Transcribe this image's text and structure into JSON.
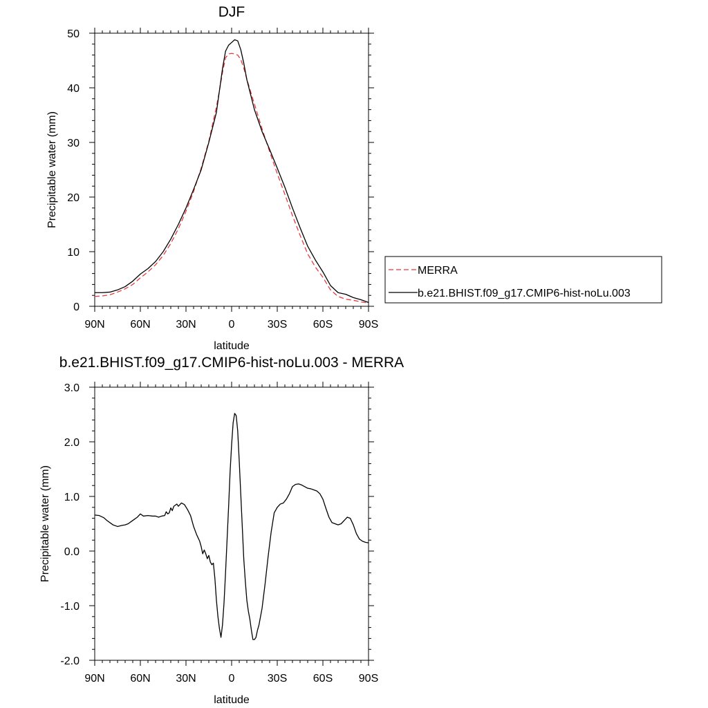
{
  "chart_data": [
    {
      "type": "line",
      "title": "DJF",
      "xlabel": "latitude",
      "ylabel": "Precipitable water (mm)",
      "xlim": [
        -90,
        90
      ],
      "ylim": [
        0,
        50
      ],
      "x_ticks": [
        -90,
        -60,
        -30,
        0,
        30,
        60,
        90
      ],
      "x_tick_labels": [
        "90N",
        "60N",
        "30N",
        "0",
        "30S",
        "60S",
        "90S"
      ],
      "y_ticks": [
        0,
        10,
        20,
        30,
        40,
        50
      ],
      "y_tick_labels": [
        "0",
        "10",
        "20",
        "30",
        "40",
        "50"
      ],
      "legend": "right",
      "series": [
        {
          "name": "MERRA",
          "color": "#e8383d",
          "dash": "dashed",
          "x": [
            -90,
            -85,
            -80,
            -75,
            -70,
            -65,
            -60,
            -55,
            -50,
            -45,
            -40,
            -35,
            -30,
            -25,
            -20,
            -15,
            -10,
            -8,
            -6,
            -4,
            -2,
            0,
            2,
            4,
            6,
            8,
            10,
            15,
            20,
            25,
            30,
            35,
            40,
            45,
            50,
            55,
            60,
            65,
            70,
            75,
            80,
            85,
            90
          ],
          "y": [
            1.8,
            1.9,
            2.1,
            2.6,
            3.2,
            4.0,
            5.2,
            6.3,
            7.6,
            9.3,
            11.5,
            14.2,
            17.4,
            21.0,
            25.3,
            30.2,
            36.5,
            39.5,
            42.8,
            45.5,
            46.2,
            46.3,
            46.2,
            46.0,
            45.2,
            43.6,
            41.6,
            37.0,
            32.5,
            28.3,
            24.3,
            20.5,
            16.6,
            13.0,
            9.6,
            7.2,
            5.3,
            3.0,
            1.8,
            1.3,
            1.1,
            0.8,
            0.6
          ]
        },
        {
          "name": "b.e21.BHIST.f09_g17.CMIP6-hist-noLu.003",
          "color": "#000000",
          "dash": "solid",
          "x": [
            -90,
            -85,
            -80,
            -75,
            -70,
            -65,
            -60,
            -55,
            -50,
            -45,
            -40,
            -35,
            -30,
            -25,
            -20,
            -15,
            -10,
            -8,
            -6,
            -4,
            -2,
            0,
            2,
            4,
            6,
            8,
            10,
            15,
            20,
            25,
            30,
            35,
            40,
            45,
            50,
            55,
            60,
            65,
            70,
            75,
            80,
            85,
            90
          ],
          "y": [
            2.5,
            2.5,
            2.6,
            3.0,
            3.6,
            4.6,
            5.9,
            6.9,
            8.2,
            10.0,
            12.3,
            15.0,
            18.0,
            21.4,
            25.0,
            30.0,
            35.5,
            39.5,
            43.5,
            46.7,
            47.8,
            48.3,
            48.8,
            48.6,
            47.0,
            44.5,
            41.5,
            36.0,
            32.0,
            28.7,
            25.3,
            21.8,
            18.0,
            14.4,
            11.0,
            8.5,
            6.3,
            3.8,
            2.5,
            2.2,
            1.6,
            1.2,
            0.7
          ]
        }
      ]
    },
    {
      "type": "line",
      "title": "b.e21.BHIST.f09_g17.CMIP6-hist-noLu.003 - MERRA",
      "xlabel": "latitude",
      "ylabel": "Precipitable water (mm)",
      "xlim": [
        -90,
        90
      ],
      "ylim": [
        -2.0,
        3.0
      ],
      "x_ticks": [
        -90,
        -60,
        -30,
        0,
        30,
        60,
        90
      ],
      "x_tick_labels": [
        "90N",
        "60N",
        "30N",
        "0",
        "30S",
        "60S",
        "90S"
      ],
      "y_ticks": [
        -2.0,
        -1.0,
        0.0,
        1.0,
        2.0,
        3.0
      ],
      "y_tick_labels": [
        "-2.0",
        "-1.0",
        "0.0",
        "1.0",
        "2.0",
        "3.0"
      ],
      "series": [
        {
          "color": "#000000",
          "dash": "solid",
          "x": [
            -90,
            -87,
            -84,
            -82,
            -80,
            -78,
            -75,
            -72,
            -70,
            -68,
            -66,
            -64,
            -62,
            -60,
            -58,
            -55,
            -52,
            -50,
            -48,
            -46,
            -44,
            -43,
            -42,
            -41,
            -40,
            -39,
            -38,
            -36,
            -35,
            -33,
            -31,
            -29,
            -27,
            -25,
            -23,
            -21,
            -20,
            -19,
            -18,
            -17,
            -16,
            -15,
            -14,
            -13,
            -12,
            -11,
            -10,
            -9,
            -8,
            -7,
            -6,
            -5,
            -4,
            -3,
            -2,
            -1,
            0,
            1,
            2,
            3,
            4,
            5,
            6,
            7,
            8,
            9,
            10,
            11,
            12,
            13,
            14,
            15,
            16,
            17,
            18,
            19,
            20,
            22,
            24,
            26,
            28,
            30,
            32,
            34,
            36,
            38,
            40,
            42,
            44,
            46,
            48,
            50,
            52,
            54,
            56,
            58,
            60,
            62,
            64,
            66,
            68,
            70,
            72,
            74,
            76,
            78,
            80,
            82,
            84,
            86,
            88,
            90
          ],
          "y": [
            0.66,
            0.65,
            0.61,
            0.56,
            0.52,
            0.48,
            0.45,
            0.47,
            0.48,
            0.5,
            0.54,
            0.58,
            0.62,
            0.68,
            0.64,
            0.65,
            0.64,
            0.64,
            0.62,
            0.64,
            0.65,
            0.72,
            0.68,
            0.7,
            0.79,
            0.74,
            0.82,
            0.86,
            0.82,
            0.88,
            0.85,
            0.76,
            0.65,
            0.45,
            0.3,
            0.18,
            0.08,
            -0.05,
            0.02,
            -0.05,
            -0.14,
            -0.08,
            -0.2,
            -0.25,
            -0.22,
            -0.5,
            -0.9,
            -1.2,
            -1.42,
            -1.58,
            -1.35,
            -0.95,
            -0.4,
            0.2,
            0.8,
            1.45,
            1.95,
            2.35,
            2.52,
            2.48,
            2.2,
            1.65,
            1.05,
            0.45,
            -0.15,
            -0.55,
            -0.9,
            -1.1,
            -1.25,
            -1.45,
            -1.62,
            -1.62,
            -1.58,
            -1.45,
            -1.35,
            -1.2,
            -1.05,
            -0.6,
            -0.1,
            0.35,
            0.7,
            0.8,
            0.86,
            0.88,
            0.95,
            1.05,
            1.18,
            1.22,
            1.23,
            1.21,
            1.18,
            1.15,
            1.14,
            1.12,
            1.1,
            1.05,
            0.95,
            0.78,
            0.62,
            0.52,
            0.5,
            0.48,
            0.5,
            0.56,
            0.62,
            0.6,
            0.48,
            0.32,
            0.22,
            0.18,
            0.16,
            0.15
          ]
        }
      ]
    }
  ]
}
